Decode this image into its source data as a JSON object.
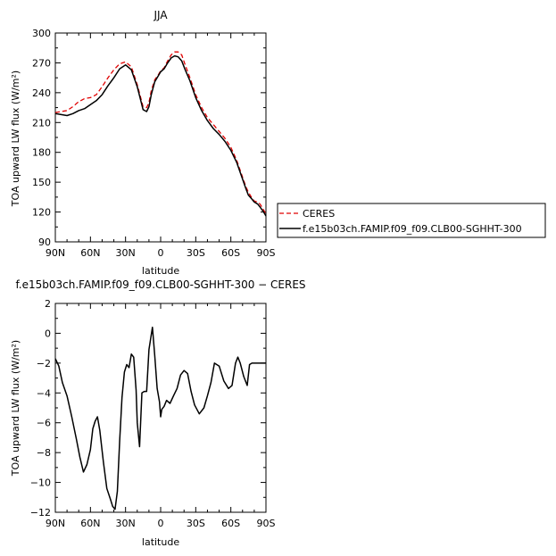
{
  "chart_data": [
    {
      "type": "line",
      "title": "JJA",
      "xlabel": "latitude",
      "ylabel": "TOA upward LW flux (W/m²)",
      "ylim": [
        90,
        300
      ],
      "yticks": [
        90,
        120,
        150,
        180,
        210,
        240,
        270,
        300
      ],
      "xticks": [
        90,
        60,
        30,
        0,
        -30,
        -60,
        -90
      ],
      "xticklabels": [
        "90N",
        "60N",
        "30N",
        "0",
        "30S",
        "60S",
        "90S"
      ],
      "legend": "right",
      "series": [
        {
          "name": "CERES",
          "color": "#e00000",
          "dash": true,
          "x": [
            90,
            85,
            80,
            75,
            70,
            65,
            60,
            55,
            50,
            45,
            40,
            35,
            30,
            25,
            20,
            15,
            12,
            10,
            8,
            5,
            2,
            0,
            -3,
            -6,
            -9,
            -12,
            -15,
            -18,
            -21,
            -25,
            -30,
            -35,
            -40,
            -45,
            -50,
            -55,
            -60,
            -65,
            -70,
            -73,
            -75,
            -78,
            -80,
            -83,
            -85,
            -88,
            -90
          ],
          "values": [
            220,
            221,
            222,
            226,
            231,
            234,
            235,
            238,
            246,
            255,
            263,
            269,
            271,
            266,
            248,
            226,
            225,
            230,
            242,
            253,
            258,
            262,
            265,
            272,
            278,
            281,
            281,
            278,
            268,
            255,
            238,
            225,
            215,
            208,
            201,
            194,
            185,
            172,
            155,
            145,
            140,
            134,
            131,
            130,
            128,
            122,
            118
          ]
        },
        {
          "name": "f.e15b03ch.FAMIP.f09_f09.CLB00-SGHHT-300",
          "color": "#000000",
          "dash": false,
          "x": [
            90,
            85,
            80,
            75,
            70,
            65,
            60,
            55,
            50,
            45,
            40,
            35,
            30,
            25,
            20,
            15,
            12,
            10,
            8,
            5,
            2,
            0,
            -3,
            -6,
            -9,
            -12,
            -15,
            -18,
            -21,
            -25,
            -30,
            -35,
            -40,
            -45,
            -50,
            -55,
            -60,
            -65,
            -70,
            -73,
            -75,
            -78,
            -80,
            -83,
            -85,
            -88,
            -90
          ],
          "values": [
            219,
            218,
            217,
            219,
            222,
            224,
            228,
            232,
            238,
            247,
            255,
            264,
            268,
            263,
            246,
            223,
            221,
            226,
            238,
            251,
            257,
            261,
            264,
            270,
            275,
            277,
            276,
            272,
            263,
            252,
            235,
            222,
            212,
            204,
            198,
            191,
            182,
            170,
            153,
            143,
            137,
            133,
            130,
            128,
            125,
            120,
            116
          ]
        }
      ]
    },
    {
      "type": "line",
      "title": "f.e15b03ch.FAMIP.f09_f09.CLB00-SGHHT-300 − CERES",
      "xlabel": "latitude",
      "ylabel": "TOA upward LW flux (W/m²)",
      "ylim": [
        -12,
        2
      ],
      "yticks": [
        -12,
        -10,
        -8,
        -6,
        -4,
        -2,
        0,
        2
      ],
      "xticks": [
        90,
        60,
        30,
        0,
        -30,
        -60,
        -90
      ],
      "xticklabels": [
        "90N",
        "60N",
        "30N",
        "0",
        "30S",
        "60S",
        "90S"
      ],
      "series": [
        {
          "color": "#000000",
          "x": [
            90,
            87,
            84,
            80,
            76,
            72,
            69,
            66,
            63,
            60,
            58,
            56,
            54,
            52,
            49,
            46,
            43,
            41,
            39,
            37,
            35,
            33,
            31,
            29,
            27,
            25,
            23,
            21,
            20,
            18,
            16,
            14,
            12,
            10,
            7,
            5,
            3,
            1,
            0,
            -1,
            -3,
            -5,
            -8,
            -11,
            -14,
            -17,
            -20,
            -23,
            -26,
            -29,
            -33,
            -37,
            -40,
            -43,
            -46,
            -50,
            -54,
            -58,
            -61,
            -64,
            -66,
            -68,
            -71,
            -74,
            -76,
            -78,
            -80,
            -82,
            -85,
            -88,
            -90
          ],
          "values": [
            -1.7,
            -2.2,
            -3.3,
            -4.2,
            -5.6,
            -7.1,
            -8.3,
            -9.3,
            -8.8,
            -7.8,
            -6.4,
            -5.9,
            -5.6,
            -6.5,
            -8.6,
            -10.4,
            -11.1,
            -11.6,
            -11.8,
            -10.6,
            -7.2,
            -4.3,
            -2.6,
            -2.1,
            -2.3,
            -1.4,
            -1.6,
            -3.8,
            -6.0,
            -7.6,
            -4.0,
            -3.9,
            -3.9,
            -1.1,
            0.4,
            -1.5,
            -3.7,
            -4.6,
            -5.6,
            -5.1,
            -4.9,
            -4.5,
            -4.7,
            -4.2,
            -3.7,
            -2.8,
            -2.5,
            -2.7,
            -3.9,
            -4.8,
            -5.4,
            -5.0,
            -4.2,
            -3.3,
            -2.0,
            -2.2,
            -3.2,
            -3.7,
            -3.5,
            -2.0,
            -1.6,
            -2.0,
            -2.9,
            -3.5,
            -2.1,
            -2.0,
            -2.0,
            -2.0,
            -2.0,
            -2.0,
            -2.0
          ]
        }
      ]
    }
  ]
}
